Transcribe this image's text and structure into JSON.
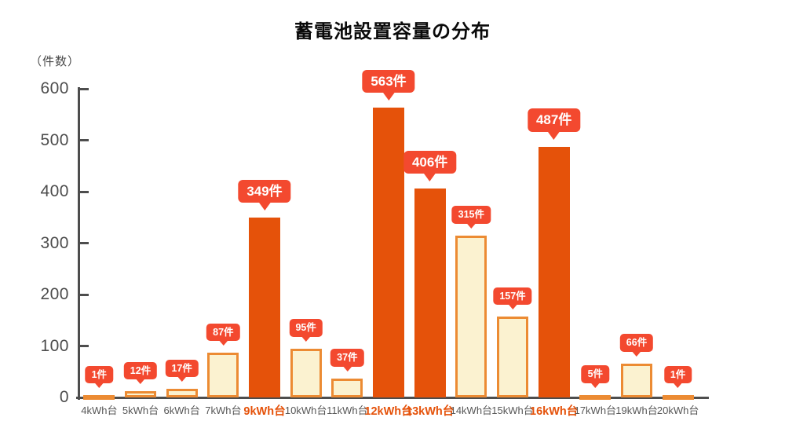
{
  "chart_data": {
    "type": "bar",
    "title": "蓄電池設置容量の分布",
    "ylabel": "（件数）",
    "categories": [
      "4kWh台",
      "5kWh台",
      "6kWh台",
      "7kWh台",
      "9kWh台",
      "10kWh台",
      "11kWh台",
      "12kWh台",
      "13kWh台",
      "14kWh台",
      "15kWh台",
      "16kWh台",
      "17kWh台",
      "19kWh台",
      "20kWh台"
    ],
    "values": [
      1,
      12,
      17,
      87,
      349,
      95,
      37,
      563,
      406,
      315,
      157,
      487,
      5,
      66,
      1
    ],
    "value_labels": [
      "1件",
      "12件",
      "17件",
      "87件",
      "349件",
      "95件",
      "37件",
      "563件",
      "406件",
      "315件",
      "157件",
      "487件",
      "5件",
      "66件",
      "1件"
    ],
    "highlighted_categories": [
      "9kWh台",
      "12kWh台",
      "13kWh台",
      "16kWh台"
    ],
    "ylim": [
      0,
      600
    ],
    "yticks": [
      0,
      100,
      200,
      300,
      400,
      500,
      600
    ],
    "grid": false,
    "legend": null
  },
  "colors": {
    "bar_highlight": "#e5520a",
    "bar_fill": "#fbf2d0",
    "bar_border": "#ec8b33",
    "badge_background": "#f3492f",
    "badge_text": "#ffffff",
    "axis": "#4d4d4d",
    "y_tick_label": "#4d4d4d",
    "x_label": "#575757",
    "x_label_highlight": "#e5520a",
    "title_text": "#0a0a0a"
  }
}
